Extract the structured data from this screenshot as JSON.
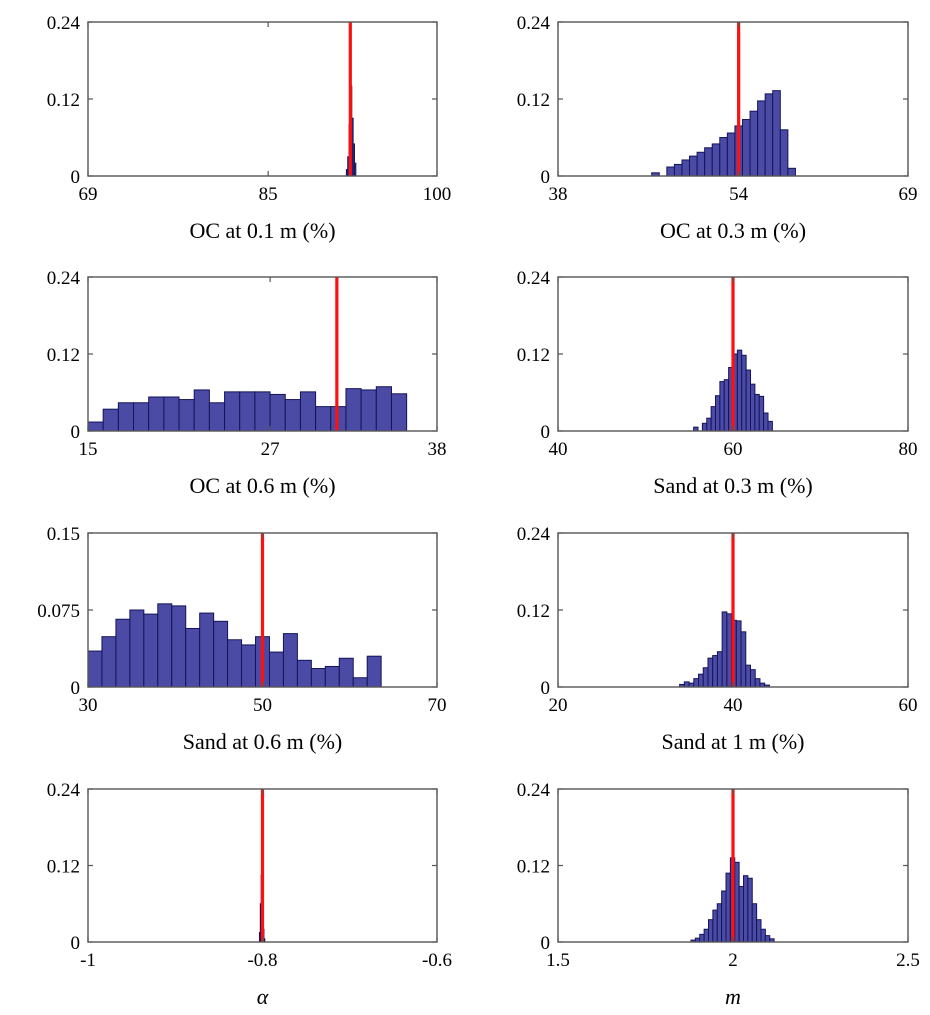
{
  "chart_data": [
    {
      "type": "bar",
      "xlabel": "OC at 0.1 m (%)",
      "xlim": [
        69,
        100
      ],
      "ylim": [
        0,
        0.24
      ],
      "xticks": [
        "69",
        "85",
        "100"
      ],
      "yticks": [
        "0",
        "0.12",
        "0.24"
      ],
      "bin_start": 91.95,
      "bin_width": 0.12,
      "values": [
        0.01,
        0.03,
        0.08,
        0.14,
        0.09,
        0.05,
        0.02
      ],
      "reference_line": 92.3
    },
    {
      "type": "bar",
      "xlabel": "OC at 0.3 m (%)",
      "xlim": [
        38,
        69
      ],
      "ylim": [
        0,
        0.24
      ],
      "xticks": [
        "38",
        "54",
        "69"
      ],
      "yticks": [
        "0",
        "0.12",
        "0.24"
      ],
      "bin_start": 46.3,
      "bin_width": 0.67,
      "values": [
        0.005,
        0.0,
        0.014,
        0.018,
        0.025,
        0.031,
        0.037,
        0.044,
        0.05,
        0.06,
        0.067,
        0.078,
        0.088,
        0.101,
        0.117,
        0.128,
        0.133,
        0.072,
        0.012
      ],
      "reference_line": 54.0
    },
    {
      "type": "bar",
      "xlabel": "OC at 0.6 m (%)",
      "xlim": [
        15,
        38
      ],
      "ylim": [
        0,
        0.24
      ],
      "xticks": [
        "15",
        "27",
        "38"
      ],
      "yticks": [
        "0",
        "0.12",
        "0.24"
      ],
      "bin_start": 15,
      "bin_width": 1,
      "values": [
        0.014,
        0.034,
        0.044,
        0.044,
        0.053,
        0.053,
        0.049,
        0.064,
        0.044,
        0.061,
        0.061,
        0.061,
        0.057,
        0.049,
        0.061,
        0.038,
        0.038,
        0.066,
        0.064,
        0.069,
        0.058
      ],
      "reference_line": 31.4
    },
    {
      "type": "bar",
      "xlabel": "Sand at 0.3 m (%)",
      "xlim": [
        40,
        80
      ],
      "ylim": [
        0,
        0.24
      ],
      "xticks": [
        "40",
        "60",
        "80"
      ],
      "yticks": [
        "0",
        "0.12",
        "0.24"
      ],
      "bin_start": 55.5,
      "bin_width": 0.5,
      "values": [
        0.006,
        0.0,
        0.012,
        0.02,
        0.038,
        0.055,
        0.077,
        0.08,
        0.099,
        0.12,
        0.126,
        0.118,
        0.095,
        0.073,
        0.057,
        0.054,
        0.028,
        0.015
      ],
      "reference_line": 60.0
    },
    {
      "type": "bar",
      "xlabel": "Sand at 0.6 m (%)",
      "xlim": [
        30,
        70
      ],
      "ylim": [
        0,
        0.15
      ],
      "xticks": [
        "30",
        "50",
        "70"
      ],
      "yticks": [
        "0",
        "0.075",
        "0.15"
      ],
      "bin_start": 30,
      "bin_width": 1.6,
      "values": [
        0.035,
        0.049,
        0.066,
        0.075,
        0.071,
        0.081,
        0.079,
        0.057,
        0.072,
        0.064,
        0.046,
        0.041,
        0.049,
        0.034,
        0.052,
        0.026,
        0.018,
        0.02,
        0.028,
        0.009,
        0.03
      ],
      "reference_line": 50.0
    },
    {
      "type": "bar",
      "xlabel": "Sand at 1 m (%)",
      "xlim": [
        20,
        60
      ],
      "ylim": [
        0,
        0.24
      ],
      "xticks": [
        "20",
        "40",
        "60"
      ],
      "yticks": [
        "0",
        "0.12",
        "0.24"
      ],
      "bin_start": 33.9,
      "bin_width": 0.54,
      "values": [
        0.004,
        0.008,
        0.006,
        0.013,
        0.02,
        0.03,
        0.045,
        0.049,
        0.055,
        0.117,
        0.114,
        0.104,
        0.103,
        0.086,
        0.034,
        0.027,
        0.013,
        0.006,
        0.003
      ],
      "reference_line": 40.0
    },
    {
      "type": "bar",
      "xlabel": "α",
      "xlim": [
        -1,
        -0.6
      ],
      "ylim": [
        0,
        0.24
      ],
      "xticks": [
        "-1",
        "-0.8",
        "-0.6"
      ],
      "yticks": [
        "0",
        "0.12",
        "0.24"
      ],
      "bin_start": -0.8035,
      "bin_width": 0.001,
      "values": [
        0.015,
        0.06,
        0.105,
        0.06,
        0.02,
        0.005
      ],
      "reference_line": -0.8
    },
    {
      "type": "bar",
      "xlabel": "m",
      "xlim": [
        1.5,
        2.5
      ],
      "ylim": [
        0,
        0.24
      ],
      "xticks": [
        "1.5",
        "2",
        "2.5"
      ],
      "yticks": [
        "0",
        "0.12",
        "0.24"
      ],
      "bin_start": 1.88,
      "bin_width": 0.0125,
      "values": [
        0.003,
        0.006,
        0.012,
        0.02,
        0.035,
        0.05,
        0.06,
        0.08,
        0.108,
        0.132,
        0.125,
        0.087,
        0.104,
        0.1,
        0.06,
        0.035,
        0.02,
        0.01,
        0.005
      ],
      "reference_line": 2.0
    }
  ],
  "colors": {
    "bar_fill": "#4b4ba6",
    "bar_edge": "#14145a",
    "reference_line": "#ff1010",
    "frame": "#555555"
  }
}
